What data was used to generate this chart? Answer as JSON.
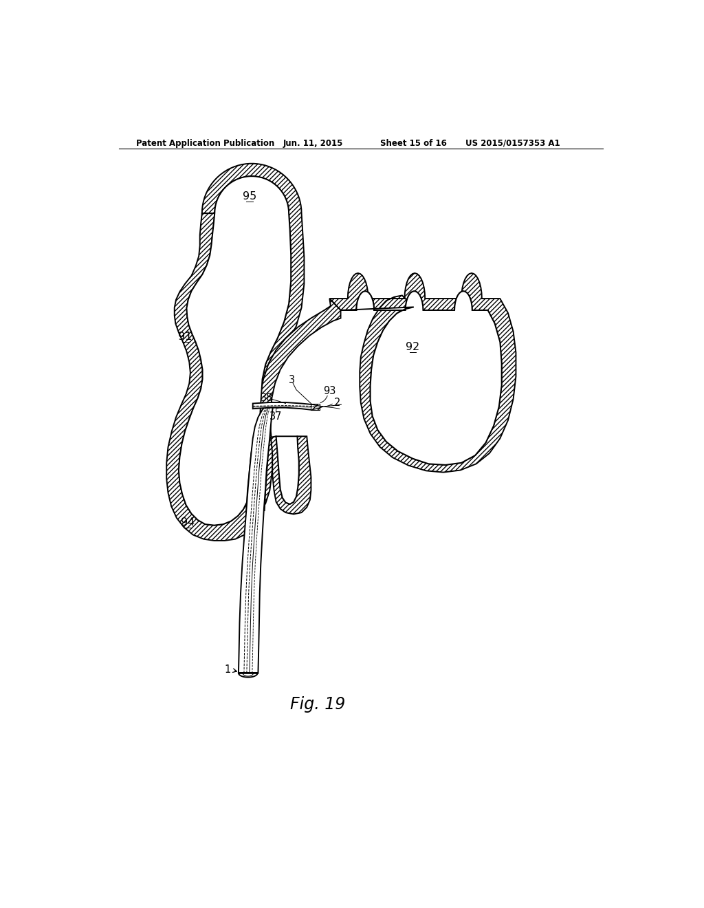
{
  "title": "Patent Application Publication",
  "date": "Jun. 11, 2015",
  "sheet": "Sheet 15 of 16",
  "patent_num": "US 2015/0157353 A1",
  "fig_label": "Fig. 19",
  "bg_color": "#ffffff"
}
